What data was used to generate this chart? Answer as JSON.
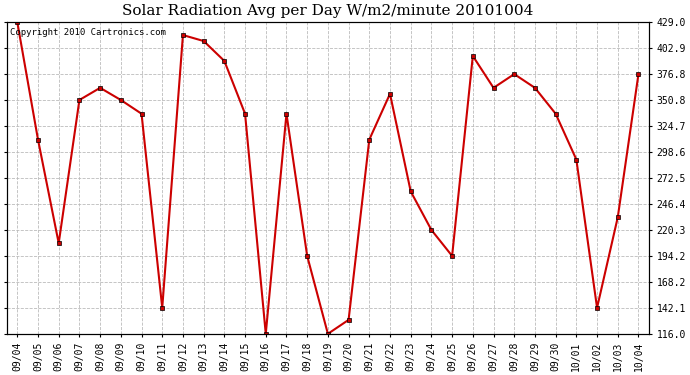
{
  "title": "Solar Radiation Avg per Day W/m2/minute 20101004",
  "copyright": "Copyright 2010 Cartronics.com",
  "dates": [
    "09/04",
    "09/05",
    "09/06",
    "09/07",
    "09/08",
    "09/09",
    "09/10",
    "09/11",
    "09/12",
    "09/13",
    "09/14",
    "09/15",
    "09/16",
    "09/17",
    "09/18",
    "09/19",
    "09/20",
    "09/21",
    "09/22",
    "09/23",
    "09/24",
    "09/25",
    "09/26",
    "09/27",
    "09/28",
    "09/29",
    "09/30",
    "10/01",
    "10/02",
    "10/03",
    "10/04"
  ],
  "values": [
    429.0,
    311.0,
    207.0,
    350.8,
    363.0,
    350.8,
    337.0,
    142.1,
    416.0,
    410.0,
    390.0,
    337.0,
    116.0,
    337.0,
    194.2,
    116.0,
    130.0,
    311.0,
    357.0,
    259.0,
    220.3,
    194.2,
    395.0,
    363.0,
    376.8,
    363.0,
    337.0,
    291.0,
    142.1,
    233.0,
    376.8
  ],
  "line_color": "#cc0000",
  "marker": "s",
  "markersize": 3,
  "linewidth": 1.5,
  "bg_color": "#ffffff",
  "grid_color": "#bbbbbb",
  "ymin": 116.0,
  "ymax": 429.0,
  "yticks": [
    116.0,
    142.1,
    168.2,
    194.2,
    220.3,
    246.4,
    272.5,
    298.6,
    324.7,
    350.8,
    376.8,
    402.9,
    429.0
  ],
  "title_fontsize": 11,
  "tick_fontsize": 7,
  "copyright_fontsize": 6.5
}
